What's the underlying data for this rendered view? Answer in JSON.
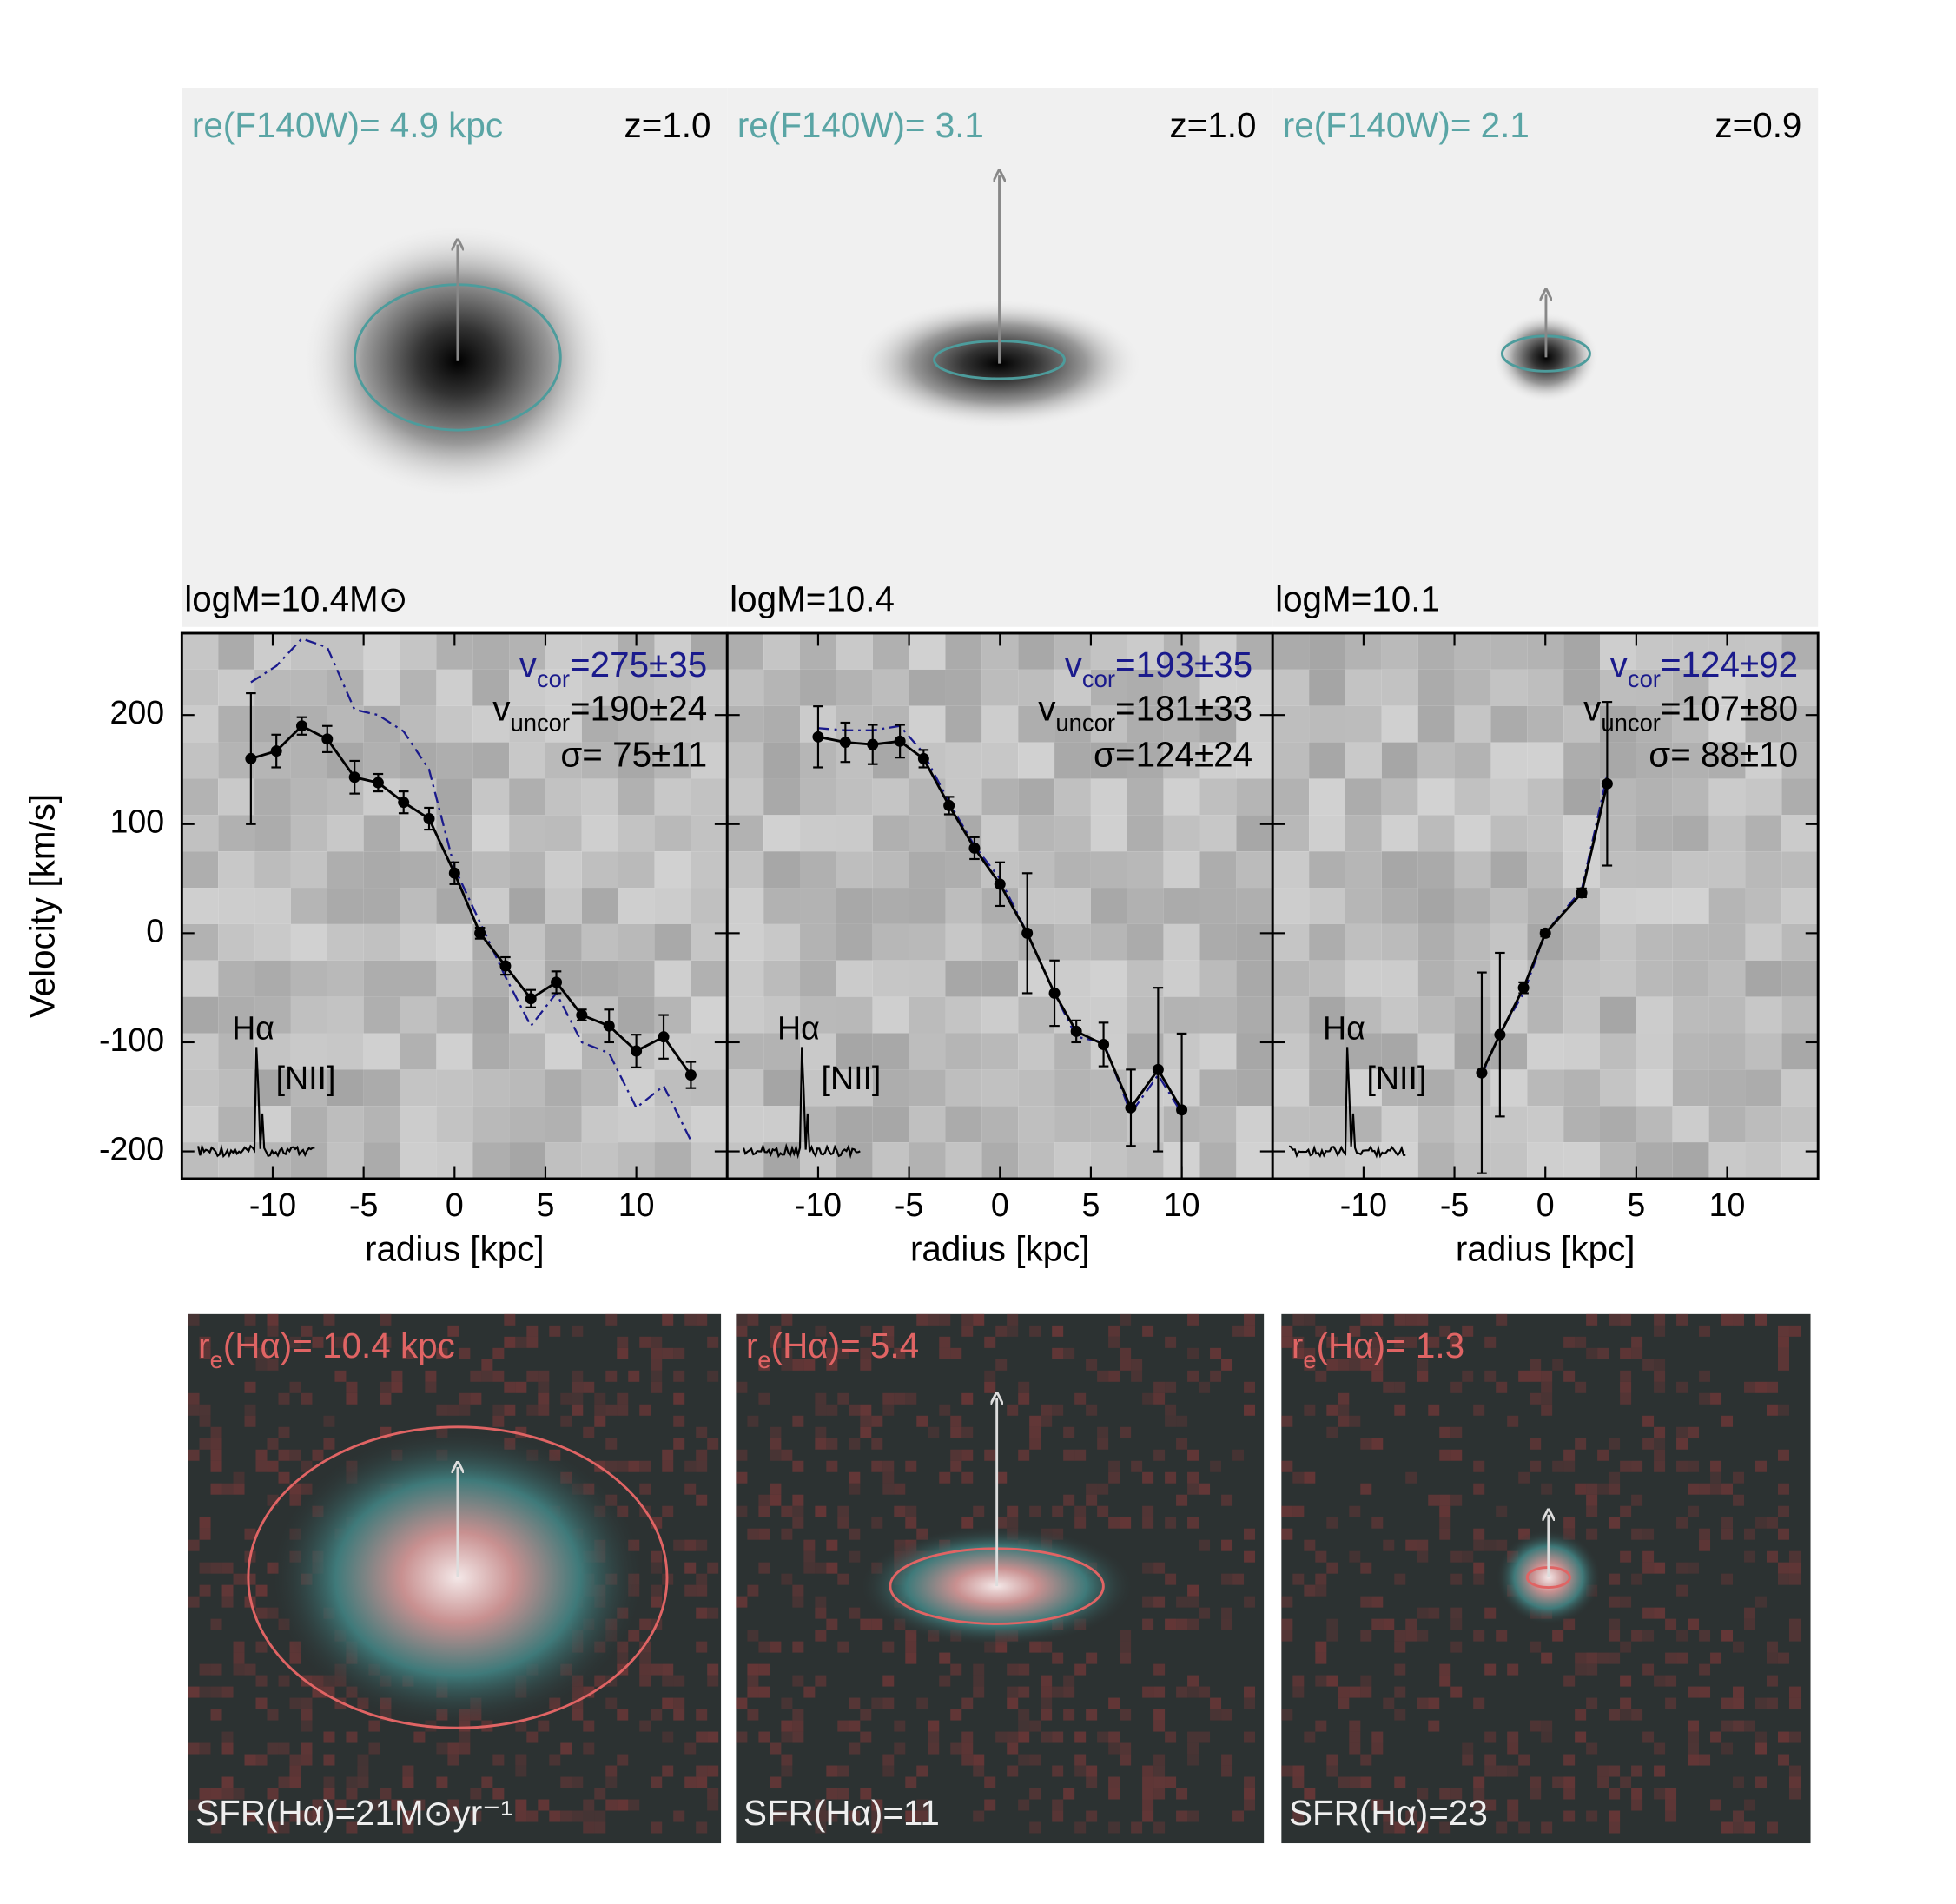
{
  "chart_data": [
    {
      "type": "line",
      "image_labels": {
        "size": "re(F140W)= 4.9 kpc",
        "redshift": "z=1.0",
        "mass": "logM=10.4M⊙"
      },
      "velocity_labels": {
        "vcor": {
          "base": "v",
          "sub": "cor",
          "value": "=275±35"
        },
        "vuncor": {
          "base": "v",
          "sub": "uncor",
          "value": "=190±24"
        },
        "sigma": "σ= 75±11"
      },
      "spectrum_labels": [
        "Hα",
        "[NII]"
      ],
      "xlabel": "radius [kpc]",
      "ylabel": "Velocity [km/s]",
      "xlim": [
        -15,
        15
      ],
      "ylim": [
        -225,
        275
      ],
      "xticks": [
        -10,
        -5,
        0,
        5,
        10
      ],
      "yticks": [
        -200,
        -100,
        0,
        100,
        200
      ],
      "ytick_labels": true,
      "x": [
        -11.2,
        -9.8,
        -8.4,
        -7,
        -5.5,
        -4.2,
        -2.8,
        -1.4,
        0,
        1.4,
        2.8,
        4.2,
        5.6,
        7,
        8.5,
        10,
        11.5,
        13
      ],
      "series": [
        {
          "color": "#000000",
          "values": [
            160,
            167,
            190,
            178,
            143,
            138,
            120,
            105,
            55,
            0,
            -30,
            -60,
            -45,
            -75,
            -85,
            -108,
            -95,
            -130
          ],
          "errors": [
            60,
            15,
            8,
            12,
            15,
            8,
            10,
            10,
            10,
            5,
            8,
            8,
            10,
            5,
            15,
            15,
            20,
            12
          ]
        },
        {
          "color": "#1a1a8c",
          "style": "dashdot",
          "values": [
            230,
            245,
            270,
            262,
            205,
            200,
            185,
            150,
            60,
            10,
            -40,
            -85,
            -55,
            -100,
            -110,
            -160,
            -140,
            -190
          ]
        }
      ],
      "halpha_image_labels": {
        "size": {
          "base": "r",
          "sub": "e",
          "value": "(Hα)= 10.4 kpc"
        },
        "sfr": "SFR(Hα)=21M⊙yr⁻¹"
      }
    },
    {
      "type": "line",
      "image_labels": {
        "size": "re(F140W)= 3.1",
        "redshift": "z=1.0",
        "mass": "logM=10.4"
      },
      "velocity_labels": {
        "vcor": {
          "base": "v",
          "sub": "cor",
          "value": "=193±35"
        },
        "vuncor": {
          "base": "v",
          "sub": "uncor",
          "value": "=181±33"
        },
        "sigma": "σ=124±24"
      },
      "spectrum_labels": [
        "Hα",
        "[NII]"
      ],
      "xlabel": "radius [kpc]",
      "xlim": [
        -15,
        15
      ],
      "ylim": [
        -225,
        275
      ],
      "xticks": [
        -10,
        -5,
        0,
        5,
        10
      ],
      "yticks": [
        -200,
        -100,
        0,
        100,
        200
      ],
      "ytick_labels": false,
      "x": [
        -10,
        -8.5,
        -7,
        -5.5,
        -4.2,
        -2.8,
        -1.4,
        0,
        1.5,
        3,
        4.2,
        5.7,
        7.2,
        8.7,
        10
      ],
      "series": [
        {
          "color": "#000000",
          "values": [
            180,
            175,
            173,
            176,
            160,
            117,
            78,
            45,
            0,
            -55,
            -90,
            -102,
            -160,
            -125,
            -162
          ],
          "errors": [
            28,
            18,
            18,
            15,
            8,
            8,
            10,
            20,
            55,
            30,
            10,
            20,
            35,
            75,
            70
          ]
        },
        {
          "color": "#1a1a8c",
          "style": "dashdot",
          "values": [
            188,
            186,
            186,
            190,
            165,
            120,
            80,
            50,
            0,
            -55,
            -95,
            -100,
            -165,
            -130,
            -165
          ]
        }
      ],
      "halpha_image_labels": {
        "size": {
          "base": "r",
          "sub": "e",
          "value": "(Hα)=  5.4"
        },
        "sfr": "SFR(Hα)=11"
      }
    },
    {
      "type": "line",
      "image_labels": {
        "size": "re(F140W)= 2.1",
        "redshift": "z=0.9",
        "mass": "logM=10.1"
      },
      "velocity_labels": {
        "vcor": {
          "base": "v",
          "sub": "cor",
          "value": "=124±92"
        },
        "vuncor": {
          "base": "v",
          "sub": "uncor",
          "value": "=107±80"
        },
        "sigma": "σ= 88±10"
      },
      "spectrum_labels": [
        "Hα",
        "[NII]"
      ],
      "xlabel": "radius [kpc]",
      "xlim": [
        -15,
        15
      ],
      "ylim": [
        -225,
        275
      ],
      "xticks": [
        -10,
        -5,
        0,
        5,
        10
      ],
      "yticks": [
        -200,
        -100,
        0,
        100,
        200
      ],
      "ytick_labels": false,
      "x": [
        -3.5,
        -2.5,
        -1.2,
        0,
        2,
        3.4
      ],
      "series": [
        {
          "color": "#000000",
          "values": [
            -128,
            -93,
            -50,
            0,
            37,
            137
          ],
          "errors": [
            92,
            75,
            5,
            3,
            4,
            75
          ]
        },
        {
          "color": "#1a1a8c",
          "style": "dashdot",
          "values": [
            -130,
            -92,
            -55,
            0,
            40,
            145
          ]
        }
      ],
      "halpha_image_labels": {
        "size": {
          "base": "r",
          "sub": "e",
          "value": "(Hα)=  1.3"
        },
        "sfr": "SFR(Hα)=23"
      }
    }
  ]
}
